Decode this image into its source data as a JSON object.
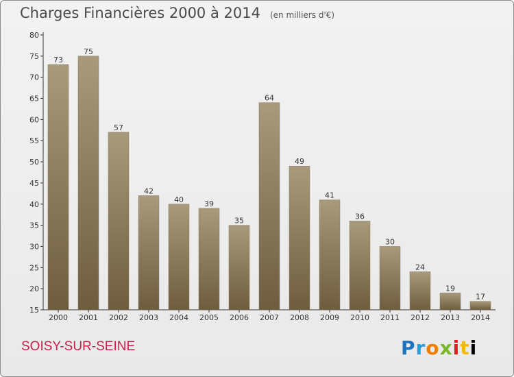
{
  "header": {
    "title": "Charges Financières 2000 à 2014",
    "subtitle": "(en milliers d'€)"
  },
  "footer": {
    "commune": "SOISY-SUR-SEINE",
    "logo": "Proxiti"
  },
  "colors": {
    "bar_light": "#a89a7c",
    "bar_dark": "#6e5c3e",
    "commune": "#c4204a"
  },
  "chart_data": {
    "type": "bar",
    "title": "Charges Financières 2000 à 2014",
    "subtitle": "(en milliers d'€)",
    "categories": [
      "2000",
      "2001",
      "2002",
      "2003",
      "2004",
      "2005",
      "2006",
      "2007",
      "2008",
      "2009",
      "2010",
      "2011",
      "2012",
      "2013",
      "2014"
    ],
    "values": [
      73,
      75,
      57,
      42,
      40,
      39,
      35,
      64,
      49,
      41,
      36,
      30,
      24,
      19,
      17
    ],
    "ylim": [
      15,
      80
    ],
    "yticks": [
      15,
      20,
      25,
      30,
      35,
      40,
      45,
      50,
      55,
      60,
      65,
      70,
      75,
      80
    ],
    "grid": false,
    "data_labels": true
  }
}
